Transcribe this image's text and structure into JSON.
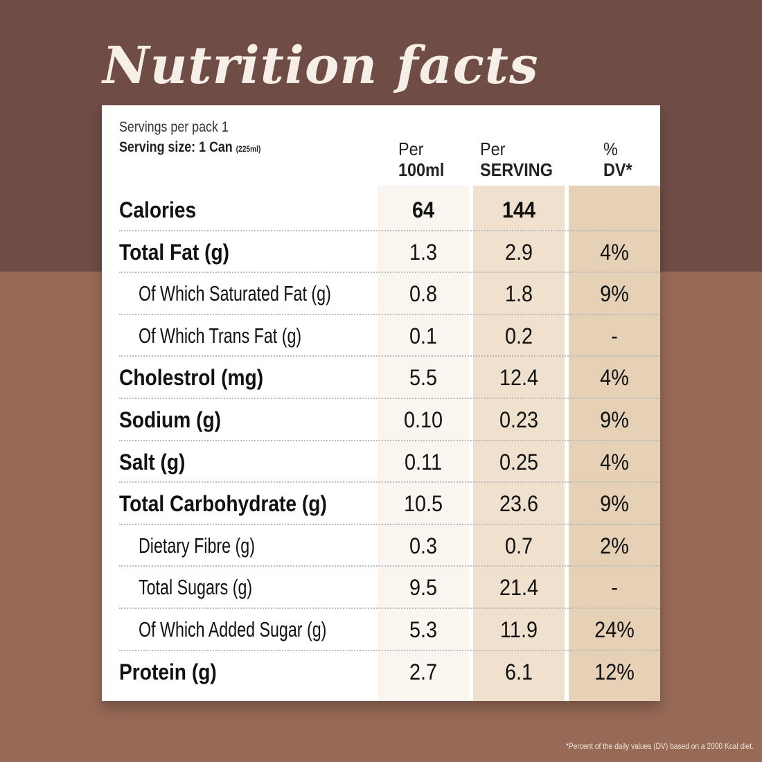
{
  "title": "Nutrition facts",
  "servings_per_pack": "Servings per pack 1",
  "serving_size": "Serving size: 1 Can",
  "serving_size_note": "(225ml)",
  "headers": [
    {
      "top": "Per",
      "bottom": "100ml"
    },
    {
      "top": "Per",
      "bottom": "SERVING"
    },
    {
      "top": "%",
      "bottom": "DV*"
    }
  ],
  "rows": [
    {
      "label": "Calories",
      "per100": "64",
      "serving": "144",
      "dv": ""
    },
    {
      "label": "Total Fat (g)",
      "per100": "1.3",
      "serving": "2.9",
      "dv": "4%"
    },
    {
      "label": "Of Which Saturated Fat (g)",
      "per100": "0.8",
      "serving": "1.8",
      "dv": "9%"
    },
    {
      "label": "Of Which Trans Fat (g)",
      "per100": "0.1",
      "serving": "0.2",
      "dv": "-"
    },
    {
      "label": "Cholestrol (mg)",
      "per100": "5.5",
      "serving": "12.4",
      "dv": "4%"
    },
    {
      "label": "Sodium (g)",
      "per100": "0.10",
      "serving": "0.23",
      "dv": "9%"
    },
    {
      "label": "Salt (g)",
      "per100": "0.11",
      "serving": "0.25",
      "dv": "4%"
    },
    {
      "label": "Total Carbohydrate (g)",
      "per100": "10.5",
      "serving": "23.6",
      "dv": "9%"
    },
    {
      "label": "Dietary Fibre (g)",
      "per100": "0.3",
      "serving": "0.7",
      "dv": "2%"
    },
    {
      "label": "Total Sugars (g)",
      "per100": "9.5",
      "serving": "21.4",
      "dv": "-"
    },
    {
      "label": "Of Which Added Sugar (g)",
      "per100": "5.3",
      "serving": "11.9",
      "dv": "24%"
    },
    {
      "label": "Protein (g)",
      "per100": "2.7",
      "serving": "6.1",
      "dv": "12%"
    }
  ],
  "footnote": "*Percent of the daily values (DV) based on a 2000 Kcal diet."
}
